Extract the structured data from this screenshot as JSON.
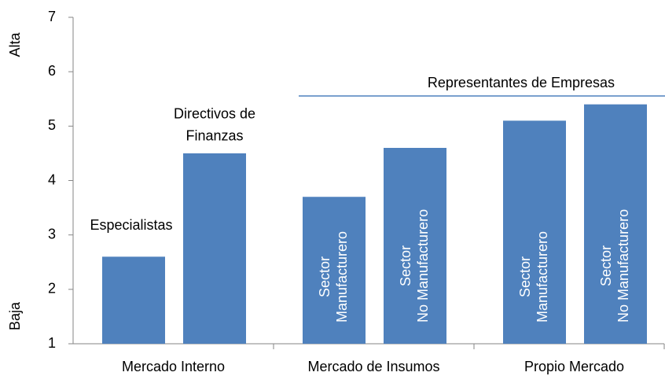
{
  "chart_data": {
    "type": "bar",
    "groups": [
      "Mercado Interno",
      "Mercado de Insumos",
      "Propio Mercado"
    ],
    "values": [
      2.6,
      4.5,
      3.7,
      4.6,
      5.1,
      5.4
    ],
    "bar_labels": [
      [
        "Especialistas"
      ],
      [
        "Directivos de",
        "Finanzas"
      ],
      [
        "Sector",
        "Manufacturero"
      ],
      [
        "Sector",
        "No Manufacturero"
      ],
      [
        "Sector",
        "Manufacturero"
      ],
      [
        "Sector",
        "No Manufacturero"
      ]
    ],
    "annotation": "Representantes de Empresas",
    "y_side_labels": {
      "top": "Alta",
      "bottom": "Baja"
    },
    "color": "#4f81bd",
    "ylim": [
      1,
      7
    ],
    "yticks": [
      1,
      2,
      3,
      4,
      5,
      6,
      7
    ]
  }
}
